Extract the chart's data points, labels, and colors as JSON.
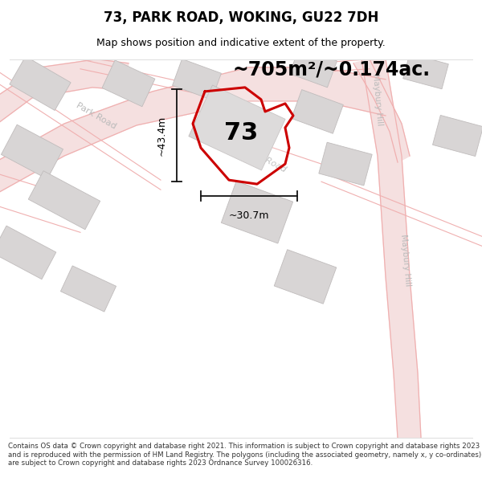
{
  "title": "73, PARK ROAD, WOKING, GU22 7DH",
  "subtitle": "Map shows position and indicative extent of the property.",
  "area_text": "~705m²/~0.174ac.",
  "number_label": "73",
  "dim_height": "~43.4m",
  "dim_width": "~30.7m",
  "footer": "Contains OS data © Crown copyright and database right 2021. This information is subject to Crown copyright and database rights 2023 and is reproduced with the permission of HM Land Registry. The polygons (including the associated geometry, namely x, y co-ordinates) are subject to Crown copyright and database rights 2023 Ordnance Survey 100026316.",
  "bg_color": "#ffffff",
  "map_bg": "#f7f5f5",
  "road_fill": "#f2dede",
  "road_line": "#f0b0b0",
  "building_fill": "#d8d5d5",
  "building_edge": "#c0bcbc",
  "property_fill": "none",
  "property_edge": "#cc0000",
  "road_label_color": "#bbbbbb",
  "maybury_color": "#cccccc",
  "dim_color": "#111111",
  "title_fontsize": 12,
  "subtitle_fontsize": 9,
  "area_fontsize": 17,
  "number_fontsize": 22,
  "dim_fontsize": 9,
  "footer_fontsize": 6.2
}
